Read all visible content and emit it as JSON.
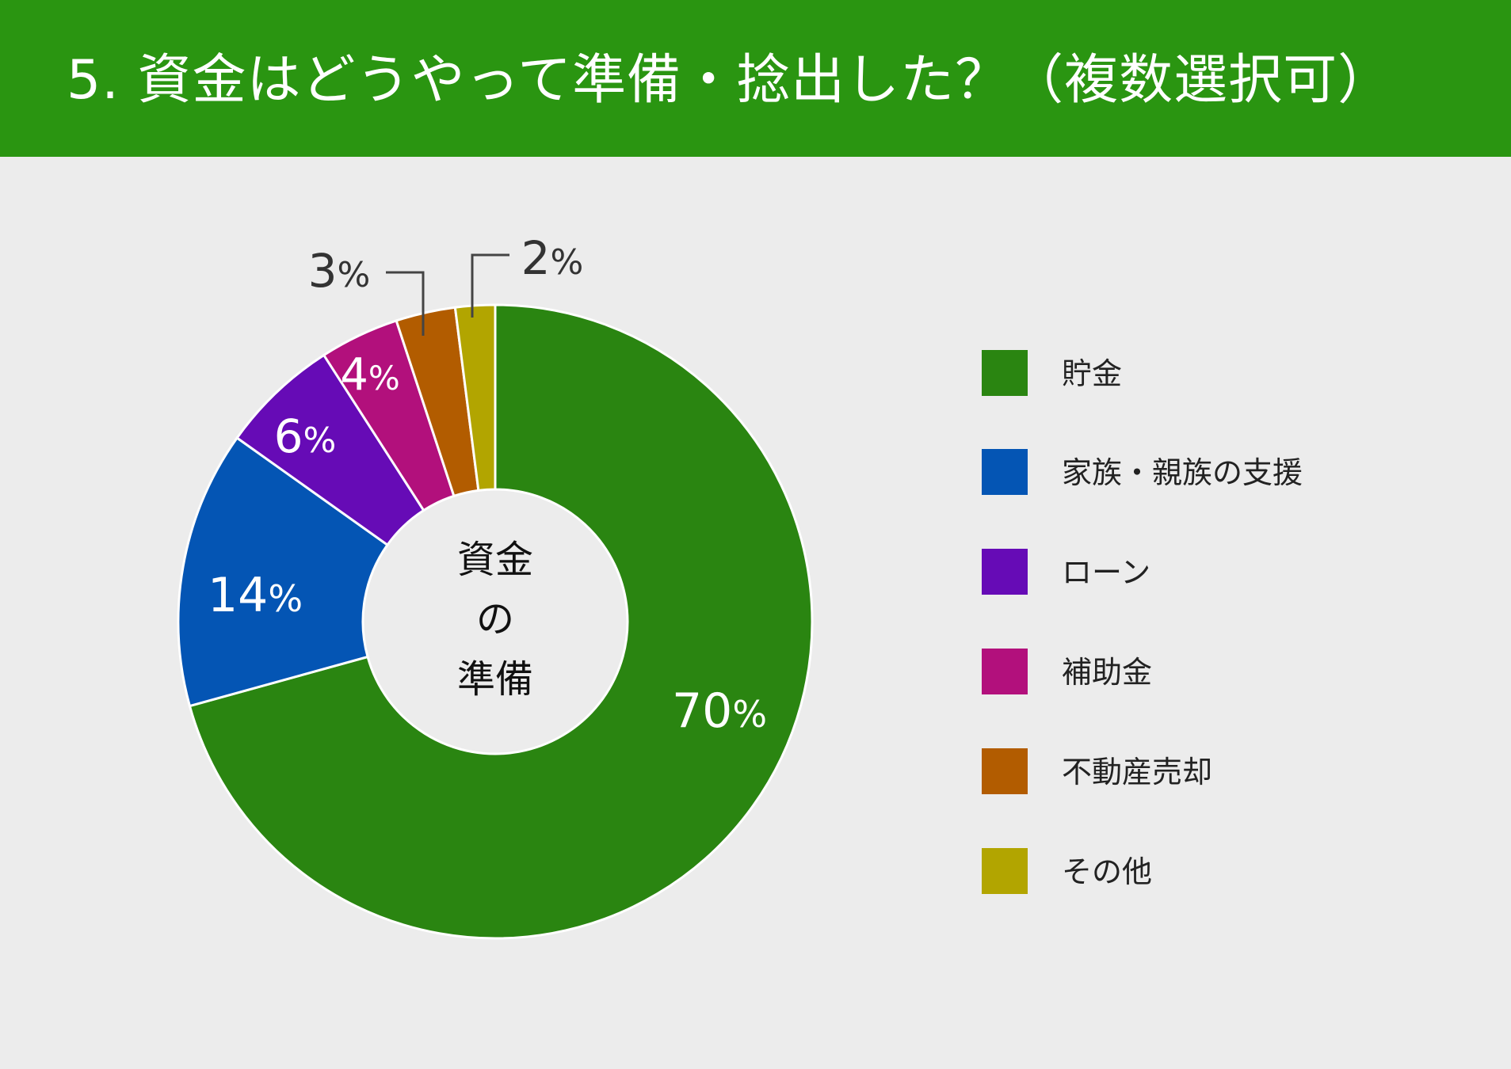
{
  "header": {
    "title": "5. 資金はどうやって準備・捻出した？（複数選択可）"
  },
  "colors": {
    "header_bg": "#2a9511",
    "background": "#ececec"
  },
  "chart_data": {
    "type": "pie",
    "title": "5. 資金はどうやって準備・捻出した？（複数選択可）",
    "center_label": [
      "資金",
      "の",
      "準備"
    ],
    "legend_placement": "right",
    "slices": [
      {
        "label": "貯金",
        "value": 70,
        "display": "70%",
        "color": "#2a8511"
      },
      {
        "label": "家族・親族の支援",
        "value": 14,
        "display": "14%",
        "color": "#0455b4"
      },
      {
        "label": "ローン",
        "value": 6,
        "display": "6%",
        "color": "#660bb6"
      },
      {
        "label": "補助金",
        "value": 4,
        "display": "4%",
        "color": "#b2107c"
      },
      {
        "label": "不動産売却",
        "value": 3,
        "display": "3%",
        "color": "#b25c00"
      },
      {
        "label": "その他",
        "value": 2,
        "display": "2%",
        "color": "#b2a500"
      }
    ]
  }
}
